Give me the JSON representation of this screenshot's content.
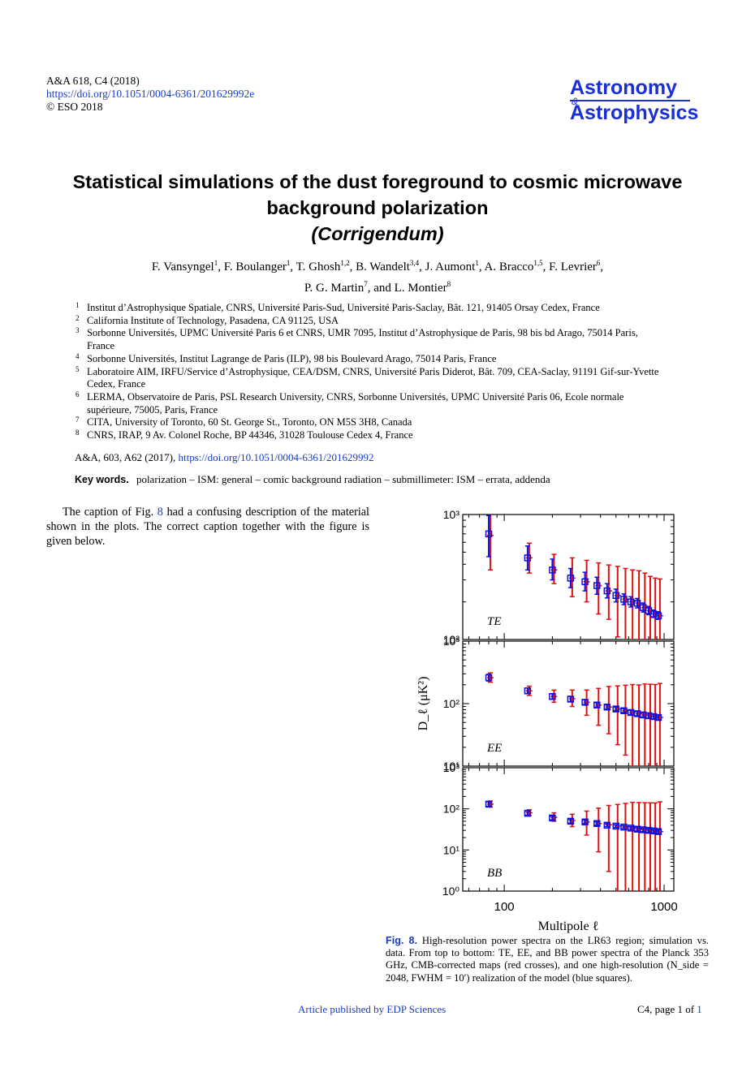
{
  "header": {
    "citation": "A&A 618, C4 (2018)",
    "doi": "https://doi.org/10.1051/0004-6361/201629992e",
    "copyright": "© ESO 2018",
    "journal_line1": "Astronomy",
    "journal_amp": "&",
    "journal_line2": "Astrophysics"
  },
  "title_line1": "Statistical simulations of the dust foreground to cosmic microwave",
  "title_line2": "background polarization",
  "title_line3": "(Corrigendum)",
  "authors": [
    {
      "name": "F. Vansyngel",
      "aff": "1"
    },
    {
      "name": "F. Boulanger",
      "aff": "1"
    },
    {
      "name": "T. Ghosh",
      "aff": "1,2"
    },
    {
      "name": "B. Wandelt",
      "aff": "3,4"
    },
    {
      "name": "J. Aumont",
      "aff": "1"
    },
    {
      "name": "A. Bracco",
      "aff": "1,5"
    },
    {
      "name": "F. Levrier",
      "aff": "6"
    },
    {
      "name": "P. G. Martin",
      "aff": "7"
    },
    {
      "name": "L. Montier",
      "aff": "8"
    }
  ],
  "affiliations": [
    {
      "n": "1",
      "text": "Institut d’Astrophysique Spatiale, CNRS, Université Paris-Sud, Université Paris-Saclay, Bât. 121, 91405 Orsay Cedex, France"
    },
    {
      "n": "2",
      "text": "California Institute of Technology, Pasadena, CA 91125, USA"
    },
    {
      "n": "3",
      "text": "Sorbonne Universités, UPMC Université Paris 6 et CNRS, UMR 7095, Institut d’Astrophysique de Paris, 98 bis bd Arago, 75014 Paris, France"
    },
    {
      "n": "4",
      "text": "Sorbonne Universités, Institut Lagrange de Paris (ILP), 98 bis Boulevard Arago, 75014 Paris, France"
    },
    {
      "n": "5",
      "text": "Laboratoire AIM, IRFU/Service d’Astrophysique, CEA/DSM, CNRS, Université Paris Diderot, Bât. 709, CEA-Saclay, 91191 Gif-sur-Yvette Cedex, France"
    },
    {
      "n": "6",
      "text": "LERMA, Observatoire de Paris, PSL Research University, CNRS, Sorbonne Universités, UPMC Université Paris 06, Ecole normale supérieure, 75005, Paris, France"
    },
    {
      "n": "7",
      "text": "CITA, University of Toronto, 60 St. George St., Toronto, ON M5S 3H8, Canada"
    },
    {
      "n": "8",
      "text": "CNRS, IRAP, 9 Av. Colonel Roche, BP 44346, 31028 Toulouse Cedex 4, France"
    }
  ],
  "original_ref": "A&A, 603, A62 (2017),",
  "original_doi": "https://doi.org/10.1051/0004-6361/201629992",
  "keywords_label": "Key words.",
  "keywords": "polarization – ISM: general – comic background radiation – submillimeter: ISM – errata, addenda",
  "body_before": "The caption of Fig.",
  "body_fig": "8",
  "body_after": "had a confusing description of the material shown in the plots. The correct caption together with the figure is given below.",
  "caption": {
    "fig_label": "Fig. 8.",
    "text": "High-resolution power spectra on the LR63 region; simulation vs. data. From top to bottom: TE, EE, and BB power spectra of the Planck 353 GHz, CMB-corrected maps (red crosses), and one high-resolution (N_side = 2048, FWHM = 10′) realization of the model (blue squares)."
  },
  "footer": {
    "left": "Article published by EDP Sciences",
    "right_prefix": "C4, page 1 of",
    "right_total": "1"
  },
  "colors": {
    "data": "#e01010",
    "model": "#1010e0",
    "link": "#1a3ccc",
    "journal": "#1b2fd6"
  },
  "chart_data": {
    "type": "scatter",
    "xlabel": "Multipole ℓ",
    "ylabel": "D_ℓ (μK²)",
    "x_scale": "log",
    "y_scale": "log",
    "xlim": [
      55,
      1150
    ],
    "x_ticks": [
      100,
      1000
    ],
    "x": [
      80,
      140,
      200,
      260,
      320,
      380,
      440,
      500,
      560,
      620,
      680,
      740,
      800,
      860,
      920
    ],
    "panels": [
      {
        "label": "TE",
        "ylim": [
          100,
          1000
        ],
        "y_ticks": [
          {
            "v": 100,
            "t": "10²"
          },
          {
            "v": 1000,
            "t": "10³"
          }
        ],
        "series": [
          {
            "name": "data",
            "values": [
              680,
              450,
              360,
              310,
              290,
              270,
              245,
              225,
              210,
              200,
              195,
              180,
              170,
              160,
              155
            ],
            "err_lo": [
              320,
              110,
              80,
              90,
              90,
              110,
              100,
              120,
              110,
              100,
              95,
              90,
              80,
              75,
              70
            ],
            "err_hi": [
              420,
              140,
              120,
              140,
              140,
              140,
              150,
              160,
              160,
              160,
              160,
              160,
              150,
              150,
              150
            ]
          },
          {
            "name": "model",
            "values": [
              700,
              450,
              360,
              310,
              290,
              270,
              245,
              225,
              210,
              200,
              195,
              180,
              170,
              160,
              155
            ],
            "err_lo": [
              240,
              90,
              60,
              50,
              45,
              40,
              30,
              25,
              20,
              18,
              16,
              14,
              12,
              10,
              10
            ],
            "err_hi": [
              280,
              110,
              80,
              60,
              55,
              45,
              35,
              28,
              22,
              20,
              18,
              16,
              14,
              12,
              12
            ]
          }
        ]
      },
      {
        "label": "EE",
        "ylim": [
          10,
          1000
        ],
        "y_ticks": [
          {
            "v": 10,
            "t": "10¹"
          },
          {
            "v": 100,
            "t": "10²"
          },
          {
            "v": 1000,
            "t": "10³"
          }
        ],
        "series": [
          {
            "name": "data",
            "values": [
              260,
              160,
              130,
              120,
              105,
              95,
              88,
              82,
              77,
              72,
              69,
              66,
              64,
              62,
              60
            ],
            "err_lo": [
              40,
              25,
              25,
              30,
              40,
              50,
              55,
              60,
              62,
              62,
              60,
              58,
              56,
              55,
              54
            ],
            "err_hi": [
              50,
              30,
              35,
              45,
              60,
              80,
              100,
              110,
              120,
              130,
              130,
              140,
              140,
              140,
              150
            ]
          },
          {
            "name": "model",
            "values": [
              260,
              160,
              130,
              118,
              105,
              95,
              88,
              82,
              77,
              72,
              69,
              66,
              64,
              62,
              60
            ],
            "err_lo": [
              30,
              15,
              12,
              10,
              8,
              7,
              6,
              5,
              5,
              5,
              5,
              5,
              5,
              5,
              5
            ],
            "err_hi": [
              35,
              18,
              14,
              12,
              10,
              8,
              7,
              6,
              6,
              6,
              6,
              6,
              6,
              6,
              6
            ]
          }
        ]
      },
      {
        "label": "BB",
        "ylim": [
          1,
          1000
        ],
        "y_ticks": [
          {
            "v": 1,
            "t": "10⁰"
          },
          {
            "v": 10,
            "t": "10¹"
          },
          {
            "v": 100,
            "t": "10²"
          },
          {
            "v": 1000,
            "t": "10³"
          }
        ],
        "series": [
          {
            "name": "data",
            "values": [
              130,
              80,
              62,
              52,
              48,
              44,
              41,
              38,
              36,
              34,
              32,
              31,
              30,
              29,
              28
            ],
            "err_lo": [
              20,
              12,
              12,
              15,
              25,
              35,
              38,
              37,
              35.5,
              33.5,
              31.5,
              30.5,
              29.5,
              28.5,
              27.5
            ],
            "err_hi": [
              25,
              15,
              18,
              22,
              40,
              60,
              80,
              90,
              100,
              110,
              110,
              110,
              110,
              110,
              120
            ]
          },
          {
            "name": "model",
            "values": [
              130,
              78,
              60,
              50,
              48,
              44,
              40,
              38,
              36,
              34,
              32,
              31,
              30,
              29,
              28
            ],
            "err_lo": [
              15,
              8,
              6,
              5,
              4,
              4,
              3,
              3,
              3,
              3,
              3,
              3,
              3,
              3,
              3
            ],
            "err_hi": [
              18,
              10,
              7,
              6,
              5,
              4,
              4,
              3,
              3,
              3,
              3,
              3,
              3,
              3,
              3
            ]
          }
        ]
      }
    ]
  }
}
